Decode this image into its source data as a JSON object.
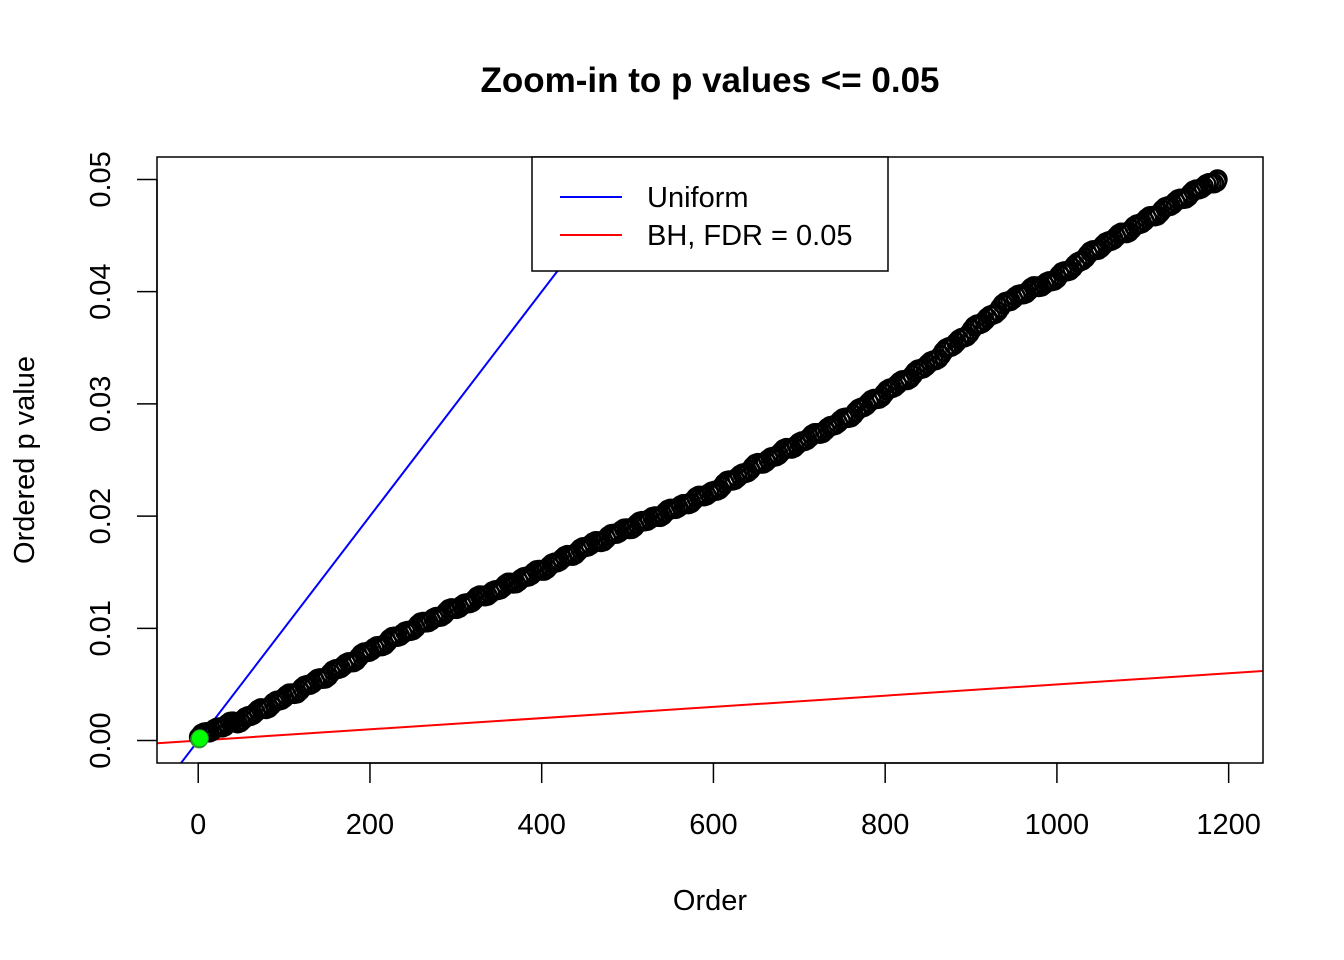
{
  "chart_data": {
    "type": "scatter",
    "title": "Zoom-in to p values <= 0.05",
    "xlabel": "Order",
    "ylabel": "Ordered p value",
    "xlim": [
      -48,
      1240
    ],
    "ylim": [
      -0.002,
      0.052
    ],
    "x_ticks": [
      0,
      200,
      400,
      600,
      800,
      1000,
      1200
    ],
    "x_tick_labels": [
      "0",
      "200",
      "400",
      "600",
      "800",
      "1000",
      "1200"
    ],
    "y_ticks": [
      0.0,
      0.01,
      0.02,
      0.03,
      0.04,
      0.05
    ],
    "y_tick_labels": [
      "0.00",
      "0.01",
      "0.02",
      "0.03",
      "0.04",
      "0.05"
    ],
    "grid": false,
    "legend": {
      "position": "top-center",
      "entries": [
        {
          "label": "Uniform",
          "color": "#0000ff"
        },
        {
          "label": "BH, FDR = 0.05",
          "color": "#ff0000"
        }
      ]
    },
    "series": [
      {
        "kind": "points",
        "color": "#000000",
        "n_points": 1187,
        "curve": [
          [
            1,
            0.0002
          ],
          [
            10,
            0.0008
          ],
          [
            50,
            0.0018
          ],
          [
            100,
            0.0038
          ],
          [
            150,
            0.0058
          ],
          [
            200,
            0.008
          ],
          [
            250,
            0.01
          ],
          [
            300,
            0.0118
          ],
          [
            350,
            0.0135
          ],
          [
            400,
            0.0152
          ],
          [
            450,
            0.0172
          ],
          [
            500,
            0.0189
          ],
          [
            550,
            0.0205
          ],
          [
            600,
            0.0222
          ],
          [
            650,
            0.0245
          ],
          [
            700,
            0.0265
          ],
          [
            750,
            0.0285
          ],
          [
            800,
            0.031
          ],
          [
            850,
            0.0335
          ],
          [
            900,
            0.0365
          ],
          [
            950,
            0.0395
          ],
          [
            1000,
            0.0412
          ],
          [
            1050,
            0.044
          ],
          [
            1100,
            0.0462
          ],
          [
            1150,
            0.0485
          ],
          [
            1187,
            0.05
          ]
        ]
      },
      {
        "kind": "highlight_points",
        "color": "#00ff00",
        "points": [
          [
            1,
            0.0001
          ],
          [
            2,
            0.0002
          ]
        ]
      },
      {
        "kind": "line",
        "name": "Uniform",
        "color": "#0000ff",
        "intercept": 0.0,
        "slope": 0.0001
      },
      {
        "kind": "line",
        "name": "BH, FDR = 0.05",
        "color": "#ff0000",
        "intercept": 0.0,
        "slope": 5e-06
      }
    ]
  }
}
